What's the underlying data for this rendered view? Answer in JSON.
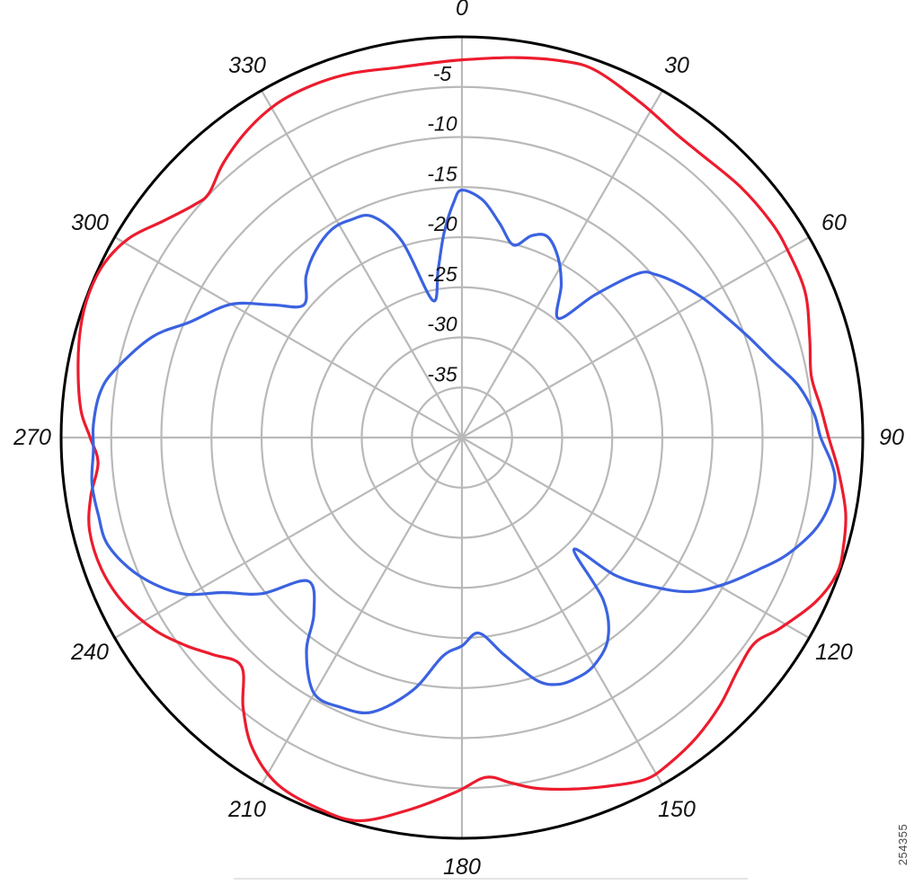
{
  "figure": {
    "figure_number": "254355"
  },
  "chart_data": {
    "type": "line",
    "coordinate_system": "polar",
    "angle_convention": "degrees, 0 at top, increasing clockwise",
    "title": "",
    "legend": "none",
    "radial_range_db": [
      -40,
      0
    ],
    "radial_tick_step_db": -5,
    "radial_tick_labels": [
      "-5",
      "-10",
      "-15",
      "-20",
      "-25",
      "-30",
      "-35"
    ],
    "radial_tick_values": [
      -5,
      -10,
      -15,
      -20,
      -25,
      -30,
      -35
    ],
    "angle_labels": [
      "0",
      "30",
      "60",
      "90",
      "120",
      "150",
      "180",
      "210",
      "240",
      "270",
      "300",
      "330"
    ],
    "angle_label_values": [
      0,
      30,
      60,
      90,
      120,
      150,
      180,
      210,
      240,
      270,
      300,
      330
    ],
    "grid": {
      "spoke_step_deg": 30,
      "ring_color": "#b9b9b9",
      "spoke_color": "#b9b9b9",
      "outer_ring_color": "#000000"
    },
    "series": [
      {
        "name": "red-trace",
        "color": "#ec1c2e",
        "points_deg_db": [
          [
            0,
            -2.3
          ],
          [
            8,
            -1.7
          ],
          [
            15,
            -1.1
          ],
          [
            20,
            -1.0
          ],
          [
            28,
            -2.1
          ],
          [
            35,
            -2.9
          ],
          [
            40,
            -3.0
          ],
          [
            48,
            -2.6
          ],
          [
            55,
            -2.4
          ],
          [
            60,
            -2.5
          ],
          [
            67,
            -2.8
          ],
          [
            74,
            -3.9
          ],
          [
            80,
            -4.6
          ],
          [
            85,
            -4.1
          ],
          [
            90,
            -3.4
          ],
          [
            95,
            -2.3
          ],
          [
            101,
            -1.0
          ],
          [
            106,
            -0.4
          ],
          [
            110,
            -0.2
          ],
          [
            115,
            -1.1
          ],
          [
            121,
            -3.0
          ],
          [
            125,
            -4.3
          ],
          [
            130,
            -4.0
          ],
          [
            136,
            -2.9
          ],
          [
            142,
            -2.0
          ],
          [
            148,
            -1.4
          ],
          [
            152,
            -1.3
          ],
          [
            158,
            -2.4
          ],
          [
            163,
            -3.3
          ],
          [
            168,
            -4.2
          ],
          [
            172,
            -5.2
          ],
          [
            176,
            -6.0
          ],
          [
            181,
            -4.6
          ],
          [
            188,
            -2.5
          ],
          [
            195,
            -0.4
          ],
          [
            201,
            -0.3
          ],
          [
            208,
            -0.8
          ],
          [
            214,
            -2.6
          ],
          [
            219,
            -5.3
          ],
          [
            224,
            -8.3
          ],
          [
            229,
            -7.0
          ],
          [
            233,
            -5.5
          ],
          [
            238,
            -3.8
          ],
          [
            244,
            -2.4
          ],
          [
            250,
            -1.7
          ],
          [
            256,
            -1.7
          ],
          [
            261,
            -2.5
          ],
          [
            266,
            -3.6
          ],
          [
            270,
            -2.9
          ],
          [
            274,
            -1.9
          ],
          [
            280,
            -1.1
          ],
          [
            286,
            -0.4
          ],
          [
            291,
            -0.1
          ],
          [
            296,
            -0.3
          ],
          [
            301,
            -1.3
          ],
          [
            306,
            -3.2
          ],
          [
            311,
            -4.6
          ],
          [
            314,
            -4.9
          ],
          [
            319,
            -3.7
          ],
          [
            325,
            -2.6
          ],
          [
            331,
            -1.9
          ],
          [
            337,
            -1.8
          ],
          [
            343,
            -2.0
          ],
          [
            350,
            -2.5
          ],
          [
            355,
            -2.5
          ]
        ]
      },
      {
        "name": "blue-trace",
        "color": "#3b62e0",
        "points_deg_db": [
          [
            0,
            -15.3
          ],
          [
            5,
            -16.2
          ],
          [
            10,
            -18.3
          ],
          [
            15,
            -20.1
          ],
          [
            19,
            -18.7
          ],
          [
            23,
            -18.2
          ],
          [
            28,
            -19.6
          ],
          [
            33,
            -21.8
          ],
          [
            39,
            -24.7
          ],
          [
            43,
            -20.5
          ],
          [
            47,
            -16.0
          ],
          [
            50,
            -14.7
          ],
          [
            55,
            -13.4
          ],
          [
            60,
            -12.2
          ],
          [
            66,
            -10.9
          ],
          [
            71,
            -9.6
          ],
          [
            76,
            -8.1
          ],
          [
            81,
            -6.1
          ],
          [
            86,
            -4.8
          ],
          [
            90,
            -4.2
          ],
          [
            94,
            -3.0
          ],
          [
            97,
            -2.5
          ],
          [
            101,
            -2.8
          ],
          [
            105,
            -3.7
          ],
          [
            110,
            -5.6
          ],
          [
            114,
            -7.6
          ],
          [
            119,
            -9.9
          ],
          [
            124,
            -12.5
          ],
          [
            128,
            -15.8
          ],
          [
            132,
            -19.5
          ],
          [
            135,
            -24.2
          ],
          [
            139,
            -18.5
          ],
          [
            144,
            -15.2
          ],
          [
            150,
            -13.7
          ],
          [
            155,
            -13.4
          ],
          [
            159,
            -13.6
          ],
          [
            163,
            -14.7
          ],
          [
            169,
            -17.9
          ],
          [
            175,
            -20.4
          ],
          [
            180,
            -19.2
          ],
          [
            185,
            -18.1
          ],
          [
            191,
            -14.3
          ],
          [
            198,
            -11.2
          ],
          [
            204,
            -10.5
          ],
          [
            210,
            -10.5
          ],
          [
            216,
            -13.6
          ],
          [
            220,
            -17.0
          ],
          [
            227,
            -19.0
          ],
          [
            232,
            -14.7
          ],
          [
            237,
            -11.6
          ],
          [
            241,
            -7.9
          ],
          [
            247,
            -4.9
          ],
          [
            253,
            -3.1
          ],
          [
            258,
            -2.9
          ],
          [
            263,
            -2.8
          ],
          [
            268,
            -3.2
          ],
          [
            272,
            -3.2
          ],
          [
            277,
            -3.6
          ],
          [
            281,
            -4.7
          ],
          [
            288,
            -7.5
          ],
          [
            293,
            -10.5
          ],
          [
            300,
            -13.4
          ],
          [
            305,
            -16.9
          ],
          [
            310,
            -19.4
          ],
          [
            316,
            -17.6
          ],
          [
            322,
            -16.3
          ],
          [
            328,
            -15.5
          ],
          [
            333,
            -15.6
          ],
          [
            338,
            -16.2
          ],
          [
            343,
            -19.5
          ],
          [
            348,
            -26.0
          ],
          [
            352,
            -23.0
          ],
          [
            355,
            -19.5
          ],
          [
            358,
            -16.5
          ]
        ]
      }
    ],
    "annotations": {
      "figure_number": "254355",
      "bottom_partial_border": true
    }
  }
}
